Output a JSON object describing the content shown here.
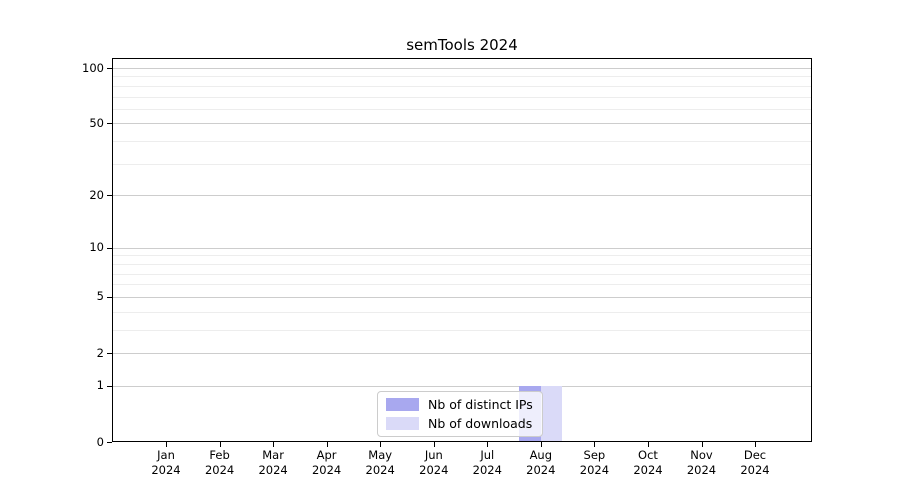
{
  "chart_data": {
    "type": "bar",
    "title": "semTools 2024",
    "categories": [
      "Jan",
      "Feb",
      "Mar",
      "Apr",
      "May",
      "Jun",
      "Jul",
      "Aug",
      "Sep",
      "Oct",
      "Nov",
      "Dec"
    ],
    "year": "2024",
    "series": [
      {
        "key": "distinct-ips",
        "name": "Nb of distinct IPs",
        "color": "#a8a8ef",
        "values": [
          0,
          0,
          0,
          0,
          0,
          0,
          0,
          1,
          0,
          0,
          0,
          0
        ]
      },
      {
        "key": "downloads",
        "name": "Nb of downloads",
        "color": "#dadaf8",
        "values": [
          0,
          0,
          0,
          0,
          0,
          0,
          0,
          1,
          0,
          0,
          0,
          0
        ]
      }
    ],
    "xlabel": "",
    "ylabel": "",
    "yscale": "log1p",
    "yticks": [
      0,
      1,
      2,
      5,
      10,
      20,
      50,
      100
    ],
    "minor_yticks": [
      3,
      4,
      6,
      7,
      8,
      9,
      30,
      40,
      60,
      70,
      80,
      90
    ],
    "ylim": [
      0,
      113
    ],
    "grid": "horizontal",
    "legend_position": "lower center"
  }
}
